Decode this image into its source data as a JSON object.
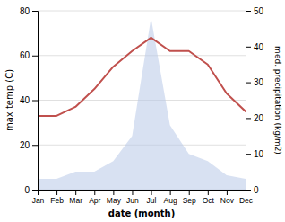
{
  "chart_data": {
    "type": "line",
    "xlabel": "date (month)",
    "ylabel": "max temp (C)",
    "y2label": "med. precipitation (kg/m2)",
    "categories": [
      "Jan",
      "Feb",
      "Mar",
      "Apr",
      "May",
      "Jun",
      "Jul",
      "Aug",
      "Sep",
      "Oct",
      "Nov",
      "Dec"
    ],
    "series": [
      {
        "type": "area",
        "axis": "y2",
        "color": "#b8c8e8",
        "values": [
          3,
          3,
          5,
          5,
          8,
          15,
          48,
          18,
          10,
          8,
          4,
          3
        ]
      },
      {
        "type": "line",
        "color": "#c0504d",
        "values": [
          33,
          33,
          37,
          45,
          55,
          62,
          68,
          62,
          62,
          56,
          43,
          35
        ]
      }
    ],
    "ylim": [
      0,
      80
    ],
    "yticks": [
      0,
      20,
      40,
      60,
      80
    ],
    "y2lim": [
      0,
      50
    ],
    "y2ticks": [
      0,
      10,
      20,
      30,
      40,
      50
    ],
    "grid": true
  }
}
